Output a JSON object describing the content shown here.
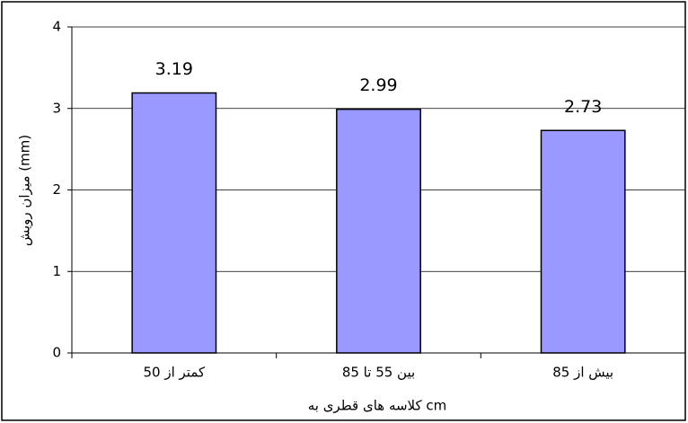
{
  "chart_data": {
    "type": "bar",
    "x_label": "کلاسه های قطری به cm",
    "y_label": "میزان رویش (mm)",
    "categories": [
      "کمتر از 50",
      "بین 55 تا 85",
      "بیش از 85"
    ],
    "values": [
      3.19,
      2.99,
      2.73
    ],
    "color": "#9999ff",
    "ylim": [
      0,
      4
    ],
    "yticks": [
      0,
      1,
      2,
      3,
      4
    ],
    "grid": true
  }
}
